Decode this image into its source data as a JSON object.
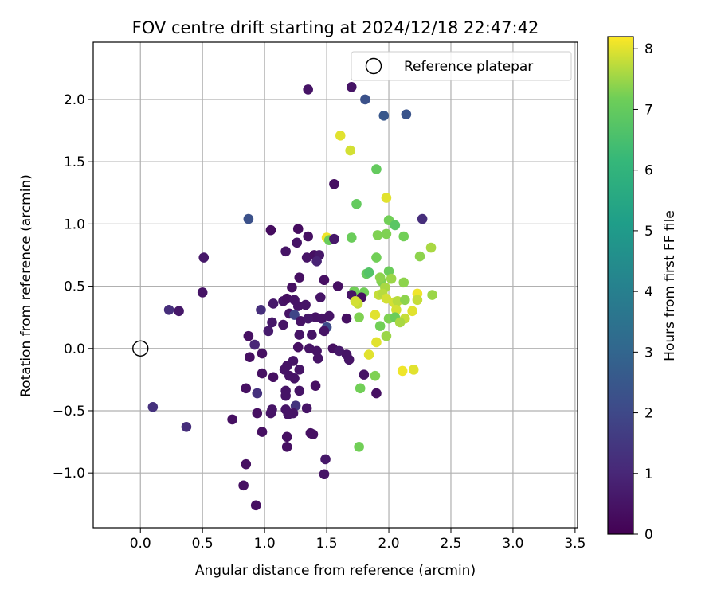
{
  "chart_data": {
    "type": "scatter",
    "title": "FOV centre drift starting at 2024/12/18 22:47:42",
    "xlabel": "Angular distance from reference (arcmin)",
    "ylabel": "Rotation from reference (arcmin)",
    "xlim": [
      -0.38,
      3.52
    ],
    "ylim": [
      -1.44,
      2.46
    ],
    "xticks": [
      0.0,
      0.5,
      1.0,
      1.5,
      2.0,
      2.5,
      3.0,
      3.5
    ],
    "xtick_labels": [
      "0.0",
      "0.5",
      "1.0",
      "1.5",
      "2.0",
      "2.5",
      "3.0",
      "3.5"
    ],
    "yticks": [
      -1.0,
      -0.5,
      0.0,
      0.5,
      1.0,
      1.5,
      2.0
    ],
    "ytick_labels": [
      "−1.0",
      "−0.5",
      "0.0",
      "0.5",
      "1.0",
      "1.5",
      "2.0"
    ],
    "grid": true,
    "legend": {
      "position": "top-right",
      "entries": [
        "Reference platepar"
      ]
    },
    "reference_point": {
      "x": 0.0,
      "y": 0.0,
      "label": "Reference platepar"
    },
    "colorbar": {
      "label": "Hours from first FF file",
      "colormap": "viridis",
      "range": [
        0,
        8.2
      ],
      "ticks": [
        0,
        1,
        2,
        3,
        4,
        5,
        6,
        7,
        8
      ],
      "tick_labels": [
        "0",
        "1",
        "2",
        "3",
        "4",
        "5",
        "6",
        "7",
        "8"
      ]
    },
    "points": [
      {
        "x": 1.35,
        "y": 2.08,
        "c": 0.5
      },
      {
        "x": 1.7,
        "y": 2.1,
        "c": 0.5
      },
      {
        "x": 1.81,
        "y": 2.0,
        "c": 2.3
      },
      {
        "x": 1.96,
        "y": 1.87,
        "c": 2.5
      },
      {
        "x": 2.14,
        "y": 1.88,
        "c": 2.4
      },
      {
        "x": 1.61,
        "y": 1.71,
        "c": 8.0
      },
      {
        "x": 1.69,
        "y": 1.59,
        "c": 7.9
      },
      {
        "x": 1.9,
        "y": 1.44,
        "c": 7.0
      },
      {
        "x": 1.56,
        "y": 1.32,
        "c": 0.4
      },
      {
        "x": 1.98,
        "y": 1.21,
        "c": 8.0
      },
      {
        "x": 1.74,
        "y": 1.16,
        "c": 7.0
      },
      {
        "x": 0.87,
        "y": 1.04,
        "c": 2.3
      },
      {
        "x": 2.27,
        "y": 1.04,
        "c": 1.2
      },
      {
        "x": 2.0,
        "y": 1.03,
        "c": 7.2
      },
      {
        "x": 2.05,
        "y": 0.99,
        "c": 6.8
      },
      {
        "x": 1.05,
        "y": 0.95,
        "c": 0.3
      },
      {
        "x": 1.27,
        "y": 0.96,
        "c": 0.3
      },
      {
        "x": 1.91,
        "y": 0.91,
        "c": 7.3
      },
      {
        "x": 1.98,
        "y": 0.92,
        "c": 7.3
      },
      {
        "x": 2.12,
        "y": 0.9,
        "c": 7.2
      },
      {
        "x": 1.35,
        "y": 0.9,
        "c": 0.4
      },
      {
        "x": 1.5,
        "y": 0.89,
        "c": 8.1
      },
      {
        "x": 1.52,
        "y": 0.87,
        "c": 7.1
      },
      {
        "x": 1.56,
        "y": 0.88,
        "c": 0.6
      },
      {
        "x": 1.7,
        "y": 0.89,
        "c": 7.1
      },
      {
        "x": 1.26,
        "y": 0.85,
        "c": 0.5
      },
      {
        "x": 2.34,
        "y": 0.81,
        "c": 7.6
      },
      {
        "x": 1.17,
        "y": 0.78,
        "c": 0.5
      },
      {
        "x": 0.51,
        "y": 0.73,
        "c": 0.6
      },
      {
        "x": 1.34,
        "y": 0.73,
        "c": 0.5
      },
      {
        "x": 1.4,
        "y": 0.75,
        "c": 0.4
      },
      {
        "x": 1.44,
        "y": 0.75,
        "c": 0.6
      },
      {
        "x": 1.42,
        "y": 0.7,
        "c": 0.9
      },
      {
        "x": 1.9,
        "y": 0.73,
        "c": 7.2
      },
      {
        "x": 2.25,
        "y": 0.74,
        "c": 7.4
      },
      {
        "x": 1.82,
        "y": 0.6,
        "c": 7.0
      },
      {
        "x": 1.84,
        "y": 0.61,
        "c": 6.7
      },
      {
        "x": 2.0,
        "y": 0.62,
        "c": 7.1
      },
      {
        "x": 1.28,
        "y": 0.57,
        "c": 0.4
      },
      {
        "x": 1.48,
        "y": 0.55,
        "c": 0.4
      },
      {
        "x": 1.94,
        "y": 0.54,
        "c": 7.3
      },
      {
        "x": 2.02,
        "y": 0.56,
        "c": 7.5
      },
      {
        "x": 1.93,
        "y": 0.57,
        "c": 7.4
      },
      {
        "x": 2.12,
        "y": 0.53,
        "c": 7.4
      },
      {
        "x": 1.97,
        "y": 0.49,
        "c": 7.6
      },
      {
        "x": 1.22,
        "y": 0.49,
        "c": 0.4
      },
      {
        "x": 1.59,
        "y": 0.5,
        "c": 0.4
      },
      {
        "x": 0.5,
        "y": 0.45,
        "c": 0.5
      },
      {
        "x": 1.72,
        "y": 0.46,
        "c": 7.2
      },
      {
        "x": 1.8,
        "y": 0.45,
        "c": 7.2
      },
      {
        "x": 1.7,
        "y": 0.43,
        "c": 0.5
      },
      {
        "x": 1.78,
        "y": 0.41,
        "c": 0.4
      },
      {
        "x": 1.92,
        "y": 0.43,
        "c": 7.8
      },
      {
        "x": 1.95,
        "y": 0.44,
        "c": 7.7
      },
      {
        "x": 2.35,
        "y": 0.43,
        "c": 7.5
      },
      {
        "x": 2.23,
        "y": 0.44,
        "c": 8.1
      },
      {
        "x": 1.45,
        "y": 0.41,
        "c": 0.5
      },
      {
        "x": 1.98,
        "y": 0.4,
        "c": 7.9
      },
      {
        "x": 2.04,
        "y": 0.37,
        "c": 7.9
      },
      {
        "x": 2.07,
        "y": 0.38,
        "c": 7.7
      },
      {
        "x": 2.23,
        "y": 0.39,
        "c": 7.8
      },
      {
        "x": 2.13,
        "y": 0.39,
        "c": 7.4
      },
      {
        "x": 1.15,
        "y": 0.38,
        "c": 0.5
      },
      {
        "x": 1.18,
        "y": 0.4,
        "c": 0.4
      },
      {
        "x": 1.24,
        "y": 0.39,
        "c": 0.5
      },
      {
        "x": 1.33,
        "y": 0.35,
        "c": 0.5
      },
      {
        "x": 1.27,
        "y": 0.34,
        "c": 0.5
      },
      {
        "x": 1.07,
        "y": 0.36,
        "c": 0.6
      },
      {
        "x": 1.75,
        "y": 0.36,
        "c": 7.8
      },
      {
        "x": 1.73,
        "y": 0.38,
        "c": 7.9
      },
      {
        "x": 0.23,
        "y": 0.31,
        "c": 1.2
      },
      {
        "x": 0.31,
        "y": 0.3,
        "c": 0.6
      },
      {
        "x": 0.97,
        "y": 0.31,
        "c": 1.2
      },
      {
        "x": 2.06,
        "y": 0.31,
        "c": 7.9
      },
      {
        "x": 2.19,
        "y": 0.3,
        "c": 8.0
      },
      {
        "x": 1.2,
        "y": 0.28,
        "c": 0.5
      },
      {
        "x": 1.24,
        "y": 0.27,
        "c": 1.9
      },
      {
        "x": 1.41,
        "y": 0.25,
        "c": 0.5
      },
      {
        "x": 1.46,
        "y": 0.24,
        "c": 0.5
      },
      {
        "x": 1.52,
        "y": 0.26,
        "c": 0.5
      },
      {
        "x": 1.66,
        "y": 0.24,
        "c": 0.4
      },
      {
        "x": 1.89,
        "y": 0.27,
        "c": 8.0
      },
      {
        "x": 2.0,
        "y": 0.24,
        "c": 7.3
      },
      {
        "x": 2.05,
        "y": 0.25,
        "c": 7.1
      },
      {
        "x": 2.13,
        "y": 0.24,
        "c": 7.8
      },
      {
        "x": 2.09,
        "y": 0.21,
        "c": 7.6
      },
      {
        "x": 1.29,
        "y": 0.22,
        "c": 0.5
      },
      {
        "x": 1.35,
        "y": 0.24,
        "c": 0.6
      },
      {
        "x": 1.76,
        "y": 0.25,
        "c": 7.3
      },
      {
        "x": 1.06,
        "y": 0.21,
        "c": 0.6
      },
      {
        "x": 1.15,
        "y": 0.19,
        "c": 0.5
      },
      {
        "x": 1.5,
        "y": 0.17,
        "c": 2.1
      },
      {
        "x": 1.48,
        "y": 0.14,
        "c": 0.5
      },
      {
        "x": 1.28,
        "y": 0.11,
        "c": 0.5
      },
      {
        "x": 1.38,
        "y": 0.11,
        "c": 0.5
      },
      {
        "x": 1.93,
        "y": 0.18,
        "c": 7.2
      },
      {
        "x": 1.03,
        "y": 0.14,
        "c": 0.7
      },
      {
        "x": 0.87,
        "y": 0.1,
        "c": 0.4
      },
      {
        "x": 1.98,
        "y": 0.1,
        "c": 7.5
      },
      {
        "x": 1.9,
        "y": 0.05,
        "c": 8.0
      },
      {
        "x": 0.92,
        "y": 0.03,
        "c": 1.0
      },
      {
        "x": 1.27,
        "y": 0.01,
        "c": 0.4
      },
      {
        "x": 1.36,
        "y": 0.0,
        "c": 0.5
      },
      {
        "x": 1.55,
        "y": 0.0,
        "c": 0.4
      },
      {
        "x": 1.6,
        "y": -0.02,
        "c": 0.6
      },
      {
        "x": 1.42,
        "y": -0.02,
        "c": 0.5
      },
      {
        "x": 0.98,
        "y": -0.04,
        "c": 0.4
      },
      {
        "x": 1.84,
        "y": -0.05,
        "c": 8.0
      },
      {
        "x": 1.66,
        "y": -0.05,
        "c": 0.5
      },
      {
        "x": 1.68,
        "y": -0.09,
        "c": 0.5
      },
      {
        "x": 1.43,
        "y": -0.08,
        "c": 0.5
      },
      {
        "x": 0.88,
        "y": -0.07,
        "c": 0.4
      },
      {
        "x": 1.23,
        "y": -0.1,
        "c": 0.5
      },
      {
        "x": 1.18,
        "y": -0.14,
        "c": 0.5
      },
      {
        "x": 1.16,
        "y": -0.17,
        "c": 0.5
      },
      {
        "x": 1.28,
        "y": -0.17,
        "c": 0.5
      },
      {
        "x": 0.98,
        "y": -0.2,
        "c": 0.4
      },
      {
        "x": 1.07,
        "y": -0.23,
        "c": 0.4
      },
      {
        "x": 1.2,
        "y": -0.22,
        "c": 0.5
      },
      {
        "x": 1.24,
        "y": -0.24,
        "c": 0.5
      },
      {
        "x": 1.8,
        "y": -0.21,
        "c": 0.5
      },
      {
        "x": 1.89,
        "y": -0.22,
        "c": 7.3
      },
      {
        "x": 2.11,
        "y": -0.18,
        "c": 8.1
      },
      {
        "x": 2.2,
        "y": -0.17,
        "c": 8.0
      },
      {
        "x": 1.41,
        "y": -0.3,
        "c": 0.4
      },
      {
        "x": 0.85,
        "y": -0.32,
        "c": 0.4
      },
      {
        "x": 1.77,
        "y": -0.32,
        "c": 7.2
      },
      {
        "x": 1.17,
        "y": -0.34,
        "c": 0.5
      },
      {
        "x": 1.28,
        "y": -0.34,
        "c": 0.5
      },
      {
        "x": 0.94,
        "y": -0.36,
        "c": 1.3
      },
      {
        "x": 1.9,
        "y": -0.36,
        "c": 0.4
      },
      {
        "x": 1.17,
        "y": -0.38,
        "c": 0.5
      },
      {
        "x": 0.1,
        "y": -0.47,
        "c": 1.3
      },
      {
        "x": 1.06,
        "y": -0.49,
        "c": 0.5
      },
      {
        "x": 1.17,
        "y": -0.49,
        "c": 0.5
      },
      {
        "x": 1.25,
        "y": -0.46,
        "c": 1.4
      },
      {
        "x": 1.34,
        "y": -0.48,
        "c": 0.5
      },
      {
        "x": 0.94,
        "y": -0.52,
        "c": 0.4
      },
      {
        "x": 1.05,
        "y": -0.52,
        "c": 0.5
      },
      {
        "x": 1.19,
        "y": -0.53,
        "c": 0.5
      },
      {
        "x": 1.23,
        "y": -0.52,
        "c": 0.5
      },
      {
        "x": 0.74,
        "y": -0.57,
        "c": 0.4
      },
      {
        "x": 0.37,
        "y": -0.63,
        "c": 1.2
      },
      {
        "x": 0.98,
        "y": -0.67,
        "c": 0.4
      },
      {
        "x": 1.18,
        "y": -0.71,
        "c": 0.4
      },
      {
        "x": 1.37,
        "y": -0.68,
        "c": 0.4
      },
      {
        "x": 1.39,
        "y": -0.69,
        "c": 0.4
      },
      {
        "x": 1.76,
        "y": -0.79,
        "c": 7.2
      },
      {
        "x": 1.18,
        "y": -0.79,
        "c": 0.4
      },
      {
        "x": 1.49,
        "y": -0.89,
        "c": 0.6
      },
      {
        "x": 0.85,
        "y": -0.93,
        "c": 0.4
      },
      {
        "x": 1.48,
        "y": -1.01,
        "c": 0.5
      },
      {
        "x": 0.83,
        "y": -1.1,
        "c": 0.4
      },
      {
        "x": 0.93,
        "y": -1.26,
        "c": 0.4
      }
    ]
  }
}
